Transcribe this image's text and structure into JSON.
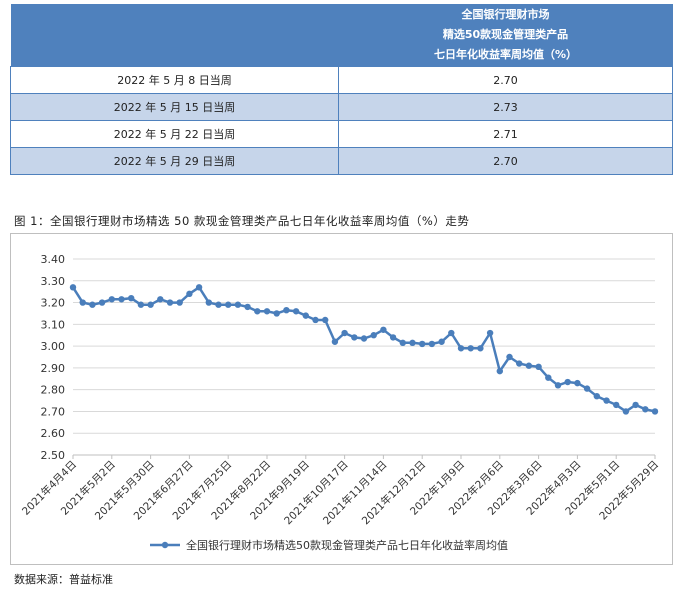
{
  "table": {
    "header_lines": [
      "全国银行理财市场",
      "精选50款现金管理类产品",
      "七日年化收益率周均值（%）"
    ],
    "rows": [
      {
        "week": "2022 年 5 月 8 日当周",
        "value": "2.70"
      },
      {
        "week": "2022 年 5 月 15 日当周",
        "value": "2.73"
      },
      {
        "week": "2022 年 5 月 22 日当周",
        "value": "2.71"
      },
      {
        "week": "2022 年 5 月 29 日当周",
        "value": "2.70"
      }
    ]
  },
  "caption": "图 1：全国银行理财市场精选 50 款现金管理类产品七日年化收益率周均值（%）走势",
  "source": "数据来源：普益标准",
  "chart_data": {
    "type": "line",
    "title": "",
    "xlabel": "",
    "ylabel": "",
    "ylim": [
      2.5,
      3.4
    ],
    "yticks": [
      "3.40",
      "3.30",
      "3.20",
      "3.10",
      "3.00",
      "2.90",
      "2.80",
      "2.70",
      "2.60",
      "2.50"
    ],
    "x_tick_labels": [
      "2021年4月4日",
      "2021年5月2日",
      "2021年5月30日",
      "2021年6月27日",
      "2021年7月25日",
      "2021年8月22日",
      "2021年9月19日",
      "2021年10月17日",
      "2021年11月14日",
      "2021年12月12日",
      "2022年1月9日",
      "2022年2月6日",
      "2022年3月6日",
      "2022年4月3日",
      "2022年5月1日",
      "2022年5月29日"
    ],
    "grid": true,
    "legend": "bottom",
    "color": "#4a7ebb",
    "series": [
      {
        "name": "全国银行理财市场精选50款现金管理类产品七日年化收益率周均值",
        "values": [
          3.27,
          3.2,
          3.19,
          3.2,
          3.215,
          3.215,
          3.22,
          3.19,
          3.19,
          3.215,
          3.2,
          3.2,
          3.24,
          3.27,
          3.2,
          3.19,
          3.19,
          3.19,
          3.18,
          3.16,
          3.16,
          3.15,
          3.165,
          3.16,
          3.14,
          3.12,
          3.12,
          3.02,
          3.06,
          3.04,
          3.035,
          3.05,
          3.075,
          3.04,
          3.015,
          3.015,
          3.01,
          3.01,
          3.02,
          3.06,
          2.99,
          2.99,
          2.99,
          3.06,
          2.885,
          2.95,
          2.92,
          2.91,
          2.905,
          2.855,
          2.82,
          2.835,
          2.83,
          2.805,
          2.77,
          2.75,
          2.73,
          2.7,
          2.73,
          2.71,
          2.7
        ]
      }
    ]
  }
}
